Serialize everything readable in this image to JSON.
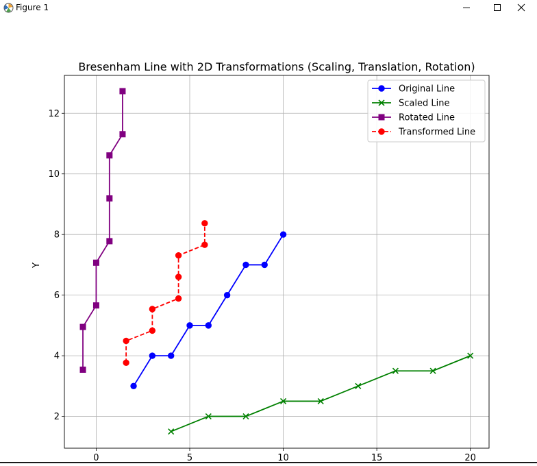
{
  "window": {
    "title": "Figure 1",
    "icons": {
      "app": "matplotlib-icon",
      "minimize": "minimize-icon",
      "maximize": "maximize-icon",
      "close": "close-icon"
    }
  },
  "chart_data": {
    "type": "line",
    "title": "Bresenham Line with 2D Transformations (Scaling, Translation, Rotation)",
    "xlabel": "",
    "ylabel": "Y",
    "xlim": [
      -1.7,
      21.0
    ],
    "ylim": [
      0.95,
      13.25
    ],
    "xticks": [
      0,
      5,
      10,
      15,
      20
    ],
    "yticks": [
      2,
      4,
      6,
      8,
      10,
      12
    ],
    "grid": true,
    "legend_position": "top-right",
    "series": [
      {
        "name": "Original Line",
        "color": "#0000ff",
        "marker": "circle",
        "linestyle": "solid",
        "x": [
          2,
          3,
          4,
          5,
          6,
          7,
          8,
          9,
          10
        ],
        "y": [
          3,
          4,
          4,
          5,
          5,
          6,
          7,
          7,
          8
        ]
      },
      {
        "name": "Scaled Line",
        "color": "#008000",
        "marker": "x",
        "linestyle": "solid",
        "x": [
          4,
          6,
          8,
          10,
          12,
          14,
          16,
          18,
          20
        ],
        "y": [
          1.5,
          2,
          2,
          2.5,
          2.5,
          3,
          3.5,
          3.5,
          4
        ]
      },
      {
        "name": "Rotated Line",
        "color": "#800080",
        "marker": "square",
        "linestyle": "solid",
        "x": [
          -0.71,
          -0.71,
          0,
          0,
          0.71,
          0.71,
          0.71,
          1.41,
          1.41
        ],
        "y": [
          3.54,
          4.95,
          5.66,
          7.07,
          7.78,
          9.19,
          10.61,
          11.31,
          12.73
        ]
      },
      {
        "name": "Transformed Line",
        "color": "#ff0000",
        "marker": "circle",
        "linestyle": "dashed",
        "x": [
          1.6,
          1.6,
          3.0,
          3.0,
          4.4,
          4.4,
          4.4,
          5.8,
          5.8
        ],
        "y": [
          3.77,
          4.49,
          4.83,
          5.54,
          5.89,
          6.6,
          7.31,
          7.66,
          8.37
        ]
      }
    ]
  }
}
